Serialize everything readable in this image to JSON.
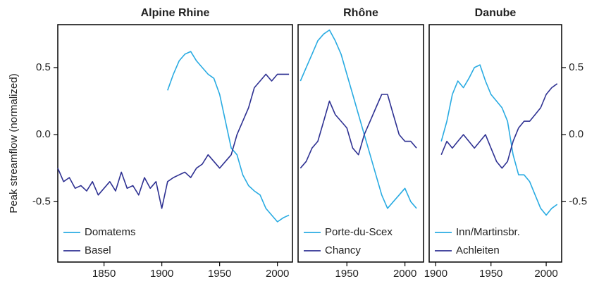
{
  "chart_data": [
    {
      "type": "line",
      "title": "Alpine Rhine",
      "ylabel": "Peak streamflow (normalized)",
      "x": [
        1810,
        1815,
        1820,
        1825,
        1830,
        1835,
        1840,
        1845,
        1850,
        1855,
        1860,
        1865,
        1870,
        1875,
        1880,
        1885,
        1890,
        1895,
        1900,
        1905,
        1910,
        1915,
        1920,
        1925,
        1930,
        1935,
        1940,
        1945,
        1950,
        1955,
        1960,
        1965,
        1970,
        1975,
        1980,
        1985,
        1990,
        1995,
        2000,
        2005,
        2010
      ],
      "series": [
        {
          "name": "Domatems",
          "color": "#29abe2",
          "values": [
            null,
            null,
            null,
            null,
            null,
            null,
            null,
            null,
            null,
            null,
            null,
            null,
            null,
            null,
            null,
            null,
            null,
            null,
            null,
            0.33,
            0.45,
            0.55,
            0.6,
            0.62,
            0.55,
            0.5,
            0.45,
            0.42,
            0.3,
            0.1,
            -0.1,
            -0.15,
            -0.3,
            -0.38,
            -0.42,
            -0.45,
            -0.55,
            -0.6,
            -0.65,
            -0.62,
            -0.6
          ]
        },
        {
          "name": "Basel",
          "color": "#2e3192",
          "values": [
            -0.25,
            -0.35,
            -0.32,
            -0.4,
            -0.38,
            -0.42,
            -0.35,
            -0.45,
            -0.4,
            -0.35,
            -0.42,
            -0.28,
            -0.4,
            -0.38,
            -0.45,
            -0.32,
            -0.4,
            -0.35,
            -0.55,
            -0.35,
            -0.32,
            -0.3,
            -0.28,
            -0.32,
            -0.25,
            -0.22,
            -0.15,
            -0.2,
            -0.25,
            -0.2,
            -0.15,
            0.0,
            0.1,
            0.2,
            0.35,
            0.4,
            0.45,
            0.4,
            0.45,
            0.45,
            0.45
          ]
        }
      ],
      "xlim": [
        1810,
        2013
      ],
      "xticks": [
        1850,
        1900,
        1950,
        2000
      ],
      "ylim": [
        -0.95,
        0.82
      ],
      "yticks": [
        -0.5,
        {
          "value": 0,
          "label": "0.0"
        },
        0.5
      ],
      "y_axis": "left",
      "legend": "lower left"
    },
    {
      "type": "line",
      "title": "Rhône",
      "x": [
        1910,
        1915,
        1920,
        1925,
        1930,
        1935,
        1940,
        1945,
        1950,
        1955,
        1960,
        1965,
        1970,
        1975,
        1980,
        1985,
        1990,
        1995,
        2000,
        2005,
        2010
      ],
      "series": [
        {
          "name": "Porte-du-Scex",
          "color": "#29abe2",
          "values": [
            0.4,
            0.5,
            0.6,
            0.7,
            0.75,
            0.78,
            0.7,
            0.6,
            0.45,
            0.3,
            0.15,
            0.0,
            -0.15,
            -0.3,
            -0.45,
            -0.55,
            -0.5,
            -0.45,
            -0.4,
            -0.5,
            -0.55
          ]
        },
        {
          "name": "Chancy",
          "color": "#2e3192",
          "values": [
            -0.25,
            -0.2,
            -0.1,
            -0.05,
            0.1,
            0.25,
            0.15,
            0.1,
            0.05,
            -0.1,
            -0.15,
            0.0,
            0.1,
            0.2,
            0.3,
            0.3,
            0.15,
            0.0,
            -0.05,
            -0.05,
            -0.1
          ]
        }
      ],
      "xlim": [
        1908,
        2016
      ],
      "xticks": [
        1950,
        2000
      ],
      "ylim": [
        -0.95,
        0.82
      ],
      "legend": "lower left"
    },
    {
      "type": "line",
      "title": "Danube",
      "x": [
        1905,
        1910,
        1915,
        1920,
        1925,
        1930,
        1935,
        1940,
        1945,
        1950,
        1955,
        1960,
        1965,
        1970,
        1975,
        1980,
        1985,
        1990,
        1995,
        2000,
        2005,
        2010
      ],
      "series": [
        {
          "name": "Inn/Martinsbr.",
          "color": "#29abe2",
          "values": [
            -0.05,
            0.1,
            0.3,
            0.4,
            0.35,
            0.42,
            0.5,
            0.52,
            0.4,
            0.3,
            0.25,
            0.2,
            0.1,
            -0.15,
            -0.3,
            -0.3,
            -0.35,
            -0.45,
            -0.55,
            -0.6,
            -0.55,
            -0.52
          ]
        },
        {
          "name": "Achleiten",
          "color": "#2e3192",
          "values": [
            -0.15,
            -0.05,
            -0.1,
            -0.05,
            0.0,
            -0.05,
            -0.1,
            -0.05,
            0.0,
            -0.1,
            -0.2,
            -0.25,
            -0.2,
            -0.05,
            0.05,
            0.1,
            0.1,
            0.15,
            0.2,
            0.3,
            0.35,
            0.38
          ]
        }
      ],
      "xlim": [
        1894,
        2014
      ],
      "xticks": [
        1900,
        1950,
        2000
      ],
      "ylim": [
        -0.95,
        0.82
      ],
      "yticks": [
        -0.5,
        {
          "value": 0,
          "label": "0.0"
        },
        0.5
      ],
      "y_axis": "right",
      "legend": "lower left"
    }
  ]
}
